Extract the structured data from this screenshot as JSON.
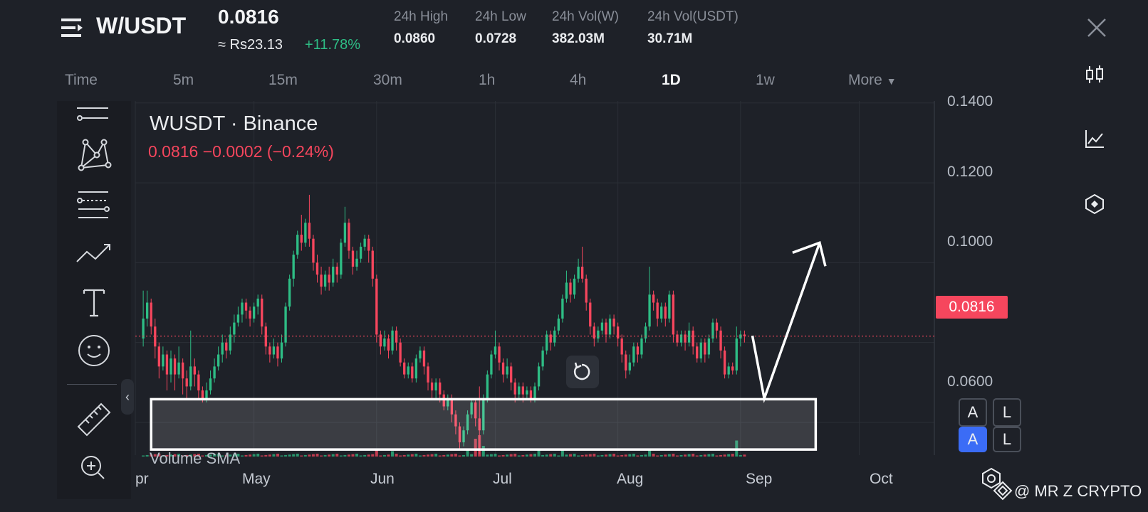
{
  "header": {
    "pair": "W/USDT",
    "last_price": "0.0816",
    "fiat_price": "≈ Rs23.13",
    "change_pct": "+11.78%",
    "stats": [
      {
        "label": "24h High",
        "value": "0.0860"
      },
      {
        "label": "24h Low",
        "value": "0.0728"
      },
      {
        "label": "24h Vol(W)",
        "value": "382.03M"
      },
      {
        "label": "24h Vol(USDT)",
        "value": "30.71M"
      }
    ]
  },
  "timeframes": [
    "Time",
    "5m",
    "15m",
    "30m",
    "1h",
    "4h",
    "1D",
    "1w",
    "More"
  ],
  "active_timeframe": "1D",
  "chart_data": {
    "type": "candlestick",
    "title": "WUSDT · Binance",
    "quote": "0.0816  −0.0002 (−0.24%)",
    "last_price_tag": "0.0816",
    "y_tick_labels": [
      "0.1400",
      "0.1200",
      "0.1000",
      "0.0600"
    ],
    "y_ticks": [
      0.14,
      0.12,
      0.1,
      0.06
    ],
    "ylim": [
      0.0518,
      0.1405
    ],
    "x_tick_labels": [
      "pr",
      "May",
      "Jun",
      "Jul",
      "Aug",
      "Sep",
      "Oct"
    ],
    "x_ticks_day": [
      -2,
      28,
      59,
      89,
      120,
      151,
      181
    ],
    "xlim_day": [
      -2,
      200
    ],
    "support_zone": {
      "low": 0.0532,
      "high": 0.0658,
      "from_day": 2,
      "to_day": 170
    },
    "projection": [
      [
        154,
        0.0817
      ],
      [
        157,
        0.066
      ],
      [
        171,
        0.105
      ]
    ],
    "volume_label": "Volume SMA",
    "candles": [
      [
        0,
        0.081,
        0.086,
        0.093,
        0.079
      ],
      [
        1,
        0.086,
        0.09,
        0.093,
        0.084
      ],
      [
        2,
        0.09,
        0.084,
        0.091,
        0.082
      ],
      [
        3,
        0.084,
        0.079,
        0.086,
        0.076
      ],
      [
        4,
        0.079,
        0.074,
        0.08,
        0.071
      ],
      [
        5,
        0.074,
        0.077,
        0.079,
        0.073
      ],
      [
        6,
        0.077,
        0.072,
        0.078,
        0.068
      ],
      [
        7,
        0.072,
        0.076,
        0.078,
        0.07
      ],
      [
        8,
        0.076,
        0.072,
        0.077,
        0.068
      ],
      [
        9,
        0.072,
        0.075,
        0.079,
        0.071
      ],
      [
        10,
        0.075,
        0.071,
        0.076,
        0.067
      ],
      [
        11,
        0.071,
        0.069,
        0.073,
        0.066
      ],
      [
        12,
        0.069,
        0.074,
        0.083,
        0.068
      ],
      [
        13,
        0.074,
        0.072,
        0.076,
        0.069
      ],
      [
        14,
        0.072,
        0.068,
        0.073,
        0.066
      ],
      [
        15,
        0.068,
        0.066,
        0.069,
        0.065
      ],
      [
        16,
        0.066,
        0.068,
        0.07,
        0.065
      ],
      [
        17,
        0.068,
        0.071,
        0.073,
        0.067
      ],
      [
        18,
        0.071,
        0.074,
        0.076,
        0.07
      ],
      [
        19,
        0.074,
        0.077,
        0.079,
        0.073
      ],
      [
        20,
        0.077,
        0.08,
        0.082,
        0.075
      ],
      [
        21,
        0.08,
        0.078,
        0.081,
        0.076
      ],
      [
        22,
        0.078,
        0.082,
        0.084,
        0.077
      ],
      [
        23,
        0.082,
        0.085,
        0.087,
        0.08
      ],
      [
        24,
        0.085,
        0.087,
        0.089,
        0.084
      ],
      [
        25,
        0.087,
        0.09,
        0.091,
        0.085
      ],
      [
        26,
        0.09,
        0.088,
        0.091,
        0.086
      ],
      [
        27,
        0.088,
        0.086,
        0.089,
        0.084
      ],
      [
        28,
        0.086,
        0.089,
        0.09,
        0.085
      ],
      [
        29,
        0.089,
        0.091,
        0.092,
        0.087
      ],
      [
        30,
        0.091,
        0.084,
        0.092,
        0.082
      ],
      [
        31,
        0.084,
        0.079,
        0.085,
        0.077
      ],
      [
        32,
        0.079,
        0.077,
        0.08,
        0.075
      ],
      [
        33,
        0.077,
        0.079,
        0.081,
        0.076
      ],
      [
        34,
        0.079,
        0.076,
        0.08,
        0.074
      ],
      [
        35,
        0.076,
        0.08,
        0.082,
        0.075
      ],
      [
        36,
        0.08,
        0.089,
        0.09,
        0.079
      ],
      [
        37,
        0.089,
        0.096,
        0.097,
        0.088
      ],
      [
        38,
        0.096,
        0.102,
        0.103,
        0.094
      ],
      [
        39,
        0.102,
        0.107,
        0.108,
        0.101
      ],
      [
        40,
        0.107,
        0.105,
        0.112,
        0.103
      ],
      [
        41,
        0.105,
        0.11,
        0.111,
        0.104
      ],
      [
        42,
        0.11,
        0.106,
        0.117,
        0.104
      ],
      [
        43,
        0.106,
        0.1,
        0.107,
        0.098
      ],
      [
        44,
        0.1,
        0.097,
        0.102,
        0.095
      ],
      [
        45,
        0.097,
        0.094,
        0.099,
        0.092
      ],
      [
        46,
        0.094,
        0.097,
        0.098,
        0.093
      ],
      [
        47,
        0.097,
        0.095,
        0.099,
        0.093
      ],
      [
        48,
        0.095,
        0.099,
        0.101,
        0.094
      ],
      [
        49,
        0.099,
        0.097,
        0.1,
        0.095
      ],
      [
        50,
        0.097,
        0.105,
        0.106,
        0.096
      ],
      [
        51,
        0.105,
        0.11,
        0.114,
        0.104
      ],
      [
        52,
        0.11,
        0.103,
        0.111,
        0.101
      ],
      [
        53,
        0.103,
        0.099,
        0.104,
        0.097
      ],
      [
        54,
        0.099,
        0.101,
        0.103,
        0.098
      ],
      [
        55,
        0.101,
        0.104,
        0.105,
        0.1
      ],
      [
        56,
        0.104,
        0.106,
        0.107,
        0.103
      ],
      [
        57,
        0.106,
        0.103,
        0.107,
        0.1
      ],
      [
        58,
        0.103,
        0.096,
        0.104,
        0.094
      ],
      [
        59,
        0.096,
        0.082,
        0.097,
        0.08
      ],
      [
        60,
        0.082,
        0.079,
        0.083,
        0.077
      ],
      [
        61,
        0.079,
        0.081,
        0.083,
        0.078
      ],
      [
        62,
        0.081,
        0.078,
        0.082,
        0.076
      ],
      [
        63,
        0.078,
        0.083,
        0.084,
        0.077
      ],
      [
        64,
        0.083,
        0.08,
        0.084,
        0.078
      ],
      [
        65,
        0.08,
        0.075,
        0.081,
        0.074
      ],
      [
        66,
        0.075,
        0.072,
        0.076,
        0.071
      ],
      [
        67,
        0.072,
        0.074,
        0.075,
        0.071
      ],
      [
        68,
        0.074,
        0.071,
        0.075,
        0.07
      ],
      [
        69,
        0.071,
        0.076,
        0.077,
        0.07
      ],
      [
        70,
        0.076,
        0.078,
        0.079,
        0.075
      ],
      [
        71,
        0.078,
        0.074,
        0.079,
        0.072
      ],
      [
        72,
        0.074,
        0.07,
        0.075,
        0.068
      ],
      [
        73,
        0.07,
        0.068,
        0.071,
        0.066
      ],
      [
        74,
        0.068,
        0.07,
        0.071,
        0.066
      ],
      [
        75,
        0.07,
        0.067,
        0.071,
        0.065
      ],
      [
        76,
        0.067,
        0.064,
        0.068,
        0.063
      ],
      [
        77,
        0.064,
        0.066,
        0.067,
        0.063
      ],
      [
        78,
        0.066,
        0.062,
        0.067,
        0.06
      ],
      [
        79,
        0.062,
        0.059,
        0.063,
        0.057
      ],
      [
        80,
        0.059,
        0.055,
        0.06,
        0.053
      ],
      [
        81,
        0.055,
        0.058,
        0.059,
        0.054
      ],
      [
        82,
        0.058,
        0.062,
        0.063,
        0.057
      ],
      [
        83,
        0.062,
        0.065,
        0.066,
        0.061
      ],
      [
        84,
        0.065,
        0.061,
        0.066,
        0.059
      ],
      [
        85,
        0.061,
        0.058,
        0.069,
        0.052
      ],
      [
        86,
        0.058,
        0.066,
        0.067,
        0.057
      ],
      [
        87,
        0.066,
        0.072,
        0.073,
        0.065
      ],
      [
        88,
        0.072,
        0.077,
        0.078,
        0.071
      ],
      [
        89,
        0.077,
        0.079,
        0.083,
        0.076
      ],
      [
        90,
        0.079,
        0.075,
        0.08,
        0.073
      ],
      [
        91,
        0.075,
        0.072,
        0.076,
        0.07
      ],
      [
        92,
        0.072,
        0.074,
        0.076,
        0.071
      ],
      [
        93,
        0.074,
        0.07,
        0.075,
        0.068
      ],
      [
        94,
        0.07,
        0.067,
        0.071,
        0.065
      ],
      [
        95,
        0.067,
        0.069,
        0.07,
        0.066
      ],
      [
        96,
        0.069,
        0.067,
        0.07,
        0.065
      ],
      [
        97,
        0.067,
        0.068,
        0.069,
        0.066
      ],
      [
        98,
        0.068,
        0.066,
        0.069,
        0.065
      ],
      [
        99,
        0.066,
        0.069,
        0.07,
        0.065
      ],
      [
        100,
        0.069,
        0.074,
        0.075,
        0.068
      ],
      [
        101,
        0.074,
        0.078,
        0.079,
        0.073
      ],
      [
        102,
        0.078,
        0.082,
        0.083,
        0.077
      ],
      [
        103,
        0.082,
        0.08,
        0.083,
        0.078
      ],
      [
        104,
        0.08,
        0.083,
        0.084,
        0.079
      ],
      [
        105,
        0.083,
        0.086,
        0.087,
        0.082
      ],
      [
        106,
        0.086,
        0.091,
        0.092,
        0.085
      ],
      [
        107,
        0.091,
        0.095,
        0.098,
        0.09
      ],
      [
        108,
        0.095,
        0.092,
        0.096,
        0.09
      ],
      [
        109,
        0.092,
        0.096,
        0.097,
        0.091
      ],
      [
        110,
        0.096,
        0.099,
        0.101,
        0.095
      ],
      [
        111,
        0.099,
        0.096,
        0.104,
        0.095
      ],
      [
        112,
        0.096,
        0.09,
        0.097,
        0.088
      ],
      [
        113,
        0.09,
        0.084,
        0.091,
        0.082
      ],
      [
        114,
        0.084,
        0.081,
        0.085,
        0.079
      ],
      [
        115,
        0.081,
        0.083,
        0.084,
        0.08
      ],
      [
        116,
        0.083,
        0.085,
        0.086,
        0.082
      ],
      [
        117,
        0.085,
        0.082,
        0.086,
        0.08
      ],
      [
        118,
        0.082,
        0.086,
        0.087,
        0.081
      ],
      [
        119,
        0.086,
        0.084,
        0.087,
        0.082
      ],
      [
        120,
        0.084,
        0.081,
        0.085,
        0.079
      ],
      [
        121,
        0.081,
        0.077,
        0.082,
        0.075
      ],
      [
        122,
        0.077,
        0.073,
        0.078,
        0.071
      ],
      [
        123,
        0.073,
        0.075,
        0.077,
        0.072
      ],
      [
        124,
        0.075,
        0.079,
        0.08,
        0.074
      ],
      [
        125,
        0.079,
        0.077,
        0.08,
        0.075
      ],
      [
        126,
        0.077,
        0.081,
        0.082,
        0.076
      ],
      [
        127,
        0.081,
        0.084,
        0.085,
        0.08
      ],
      [
        128,
        0.084,
        0.092,
        0.099,
        0.083
      ],
      [
        129,
        0.092,
        0.09,
        0.093,
        0.088
      ],
      [
        130,
        0.09,
        0.086,
        0.091,
        0.084
      ],
      [
        131,
        0.086,
        0.089,
        0.09,
        0.085
      ],
      [
        132,
        0.089,
        0.086,
        0.09,
        0.084
      ],
      [
        133,
        0.086,
        0.092,
        0.093,
        0.085
      ],
      [
        134,
        0.092,
        0.082,
        0.093,
        0.08
      ],
      [
        135,
        0.082,
        0.08,
        0.083,
        0.079
      ],
      [
        136,
        0.08,
        0.082,
        0.083,
        0.079
      ],
      [
        137,
        0.082,
        0.08,
        0.083,
        0.078
      ],
      [
        138,
        0.08,
        0.083,
        0.085,
        0.079
      ],
      [
        139,
        0.083,
        0.079,
        0.084,
        0.077
      ],
      [
        140,
        0.079,
        0.076,
        0.08,
        0.075
      ],
      [
        141,
        0.076,
        0.08,
        0.081,
        0.075
      ],
      [
        142,
        0.08,
        0.077,
        0.081,
        0.075
      ],
      [
        143,
        0.077,
        0.081,
        0.082,
        0.076
      ],
      [
        144,
        0.081,
        0.085,
        0.086,
        0.08
      ],
      [
        145,
        0.085,
        0.083,
        0.086,
        0.081
      ],
      [
        146,
        0.083,
        0.078,
        0.084,
        0.076
      ],
      [
        147,
        0.078,
        0.072,
        0.079,
        0.071
      ],
      [
        148,
        0.072,
        0.074,
        0.075,
        0.071
      ],
      [
        149,
        0.074,
        0.073,
        0.075,
        0.072
      ],
      [
        150,
        0.073,
        0.081,
        0.084,
        0.072
      ],
      [
        151,
        0.081,
        0.082,
        0.083,
        0.079
      ],
      [
        152,
        0.082,
        0.0816,
        0.083,
        0.08
      ]
    ],
    "volume": [
      [
        59,
        2
      ],
      [
        63,
        1.5
      ],
      [
        82,
        2
      ],
      [
        84,
        5
      ],
      [
        85,
        6
      ],
      [
        86,
        3
      ],
      [
        100,
        2
      ],
      [
        106,
        2
      ],
      [
        128,
        1.8
      ],
      [
        150,
        4.5
      ]
    ]
  },
  "toolbar_tools": [
    "trendline-tool-icon",
    "pattern-tool-icon",
    "fib-tool-icon",
    "path-tool-icon",
    "text-tool-icon",
    "emoji-tool-icon",
    "ruler-tool-icon",
    "zoom-in-icon"
  ],
  "scale_buttons": {
    "auto": "A",
    "log": "L"
  },
  "watermark": "@ MR Z CRYPTO",
  "colors": {
    "up": "#2ebd85",
    "down": "#f6465d",
    "background": "#1e2128",
    "grid": "#2b2f36"
  }
}
